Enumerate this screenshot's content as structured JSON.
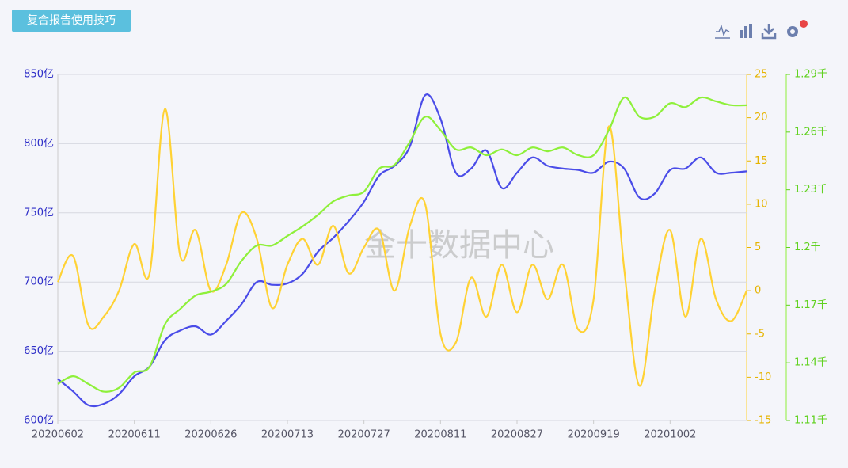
{
  "header": {
    "button": "复合报告使用技巧"
  },
  "watermark": "金十数据中心",
  "chart_data": {
    "type": "line",
    "categories": [
      "20200602",
      null,
      null,
      null,
      null,
      "20200611",
      null,
      null,
      null,
      null,
      "20200626",
      null,
      null,
      null,
      null,
      "20200713",
      null,
      null,
      null,
      null,
      "20200727",
      null,
      null,
      null,
      null,
      "20200811",
      null,
      null,
      null,
      null,
      "20200827",
      null,
      null,
      null,
      null,
      "20200919",
      null,
      null,
      null,
      null,
      "20201002",
      null,
      null,
      null,
      null,
      null
    ],
    "series": [
      {
        "color": "#4a4ce8",
        "axis": "y",
        "values": [
          630,
          621,
          611,
          612,
          619,
          632,
          639,
          658,
          665,
          668,
          662,
          672,
          684,
          700,
          698,
          699,
          706,
          722,
          732,
          744,
          758,
          777,
          784,
          798,
          835,
          818,
          779,
          782,
          795,
          768,
          779,
          790,
          784,
          782,
          781,
          779,
          787,
          782,
          761,
          764,
          781,
          782,
          790,
          779,
          779,
          780
        ]
      },
      {
        "color": "#ffd234",
        "axis": "y2",
        "values": [
          1,
          4,
          -4,
          -3,
          0,
          5.4,
          2,
          21,
          4,
          7,
          0,
          3,
          9,
          6,
          -2,
          3,
          6,
          3,
          7.5,
          2,
          5,
          7,
          0,
          7.5,
          10,
          -5,
          -6,
          1.5,
          -3,
          3,
          -2.5,
          3,
          -1,
          3,
          -4.5,
          -1,
          19,
          2.5,
          -11,
          0,
          7,
          -3,
          6,
          -1,
          -3.5,
          0
        ]
      },
      {
        "color": "#8ef03a",
        "axis": "y3",
        "values": [
          1129,
          1133,
          1129,
          1125,
          1127,
          1135,
          1138,
          1160,
          1168,
          1175,
          1177,
          1181,
          1193,
          1201,
          1201,
          1206,
          1211,
          1217,
          1224,
          1227,
          1229,
          1241,
          1243,
          1255,
          1268,
          1261,
          1251,
          1252,
          1248,
          1251,
          1248,
          1252,
          1250,
          1252,
          1248,
          1248,
          1261,
          1278,
          1268,
          1268,
          1275,
          1273,
          1278,
          1276,
          1274,
          1274
        ]
      }
    ],
    "ylim": [
      600,
      850
    ],
    "yticks": [
      {
        "value": 600,
        "label": "600亿"
      },
      {
        "value": 650,
        "label": "650亿"
      },
      {
        "value": 700,
        "label": "700亿"
      },
      {
        "value": 750,
        "label": "750亿"
      },
      {
        "value": 800,
        "label": "800亿"
      },
      {
        "value": 850,
        "label": "850亿"
      }
    ],
    "y2lim": [
      -15,
      25
    ],
    "y2ticks": [
      -15,
      -10,
      -5,
      0,
      5,
      10,
      15,
      20,
      25
    ],
    "y3lim": [
      1110,
      1290
    ],
    "y3ticks": [
      {
        "value": 1110,
        "label": "1.11千"
      },
      {
        "value": 1140,
        "label": "1.14千"
      },
      {
        "value": 1170,
        "label": "1.17千"
      },
      {
        "value": 1200,
        "label": "1.2千"
      },
      {
        "value": 1230,
        "label": "1.23千"
      },
      {
        "value": 1260,
        "label": "1.26千"
      },
      {
        "value": 1290,
        "label": "1.29千"
      }
    ],
    "grid": true
  }
}
